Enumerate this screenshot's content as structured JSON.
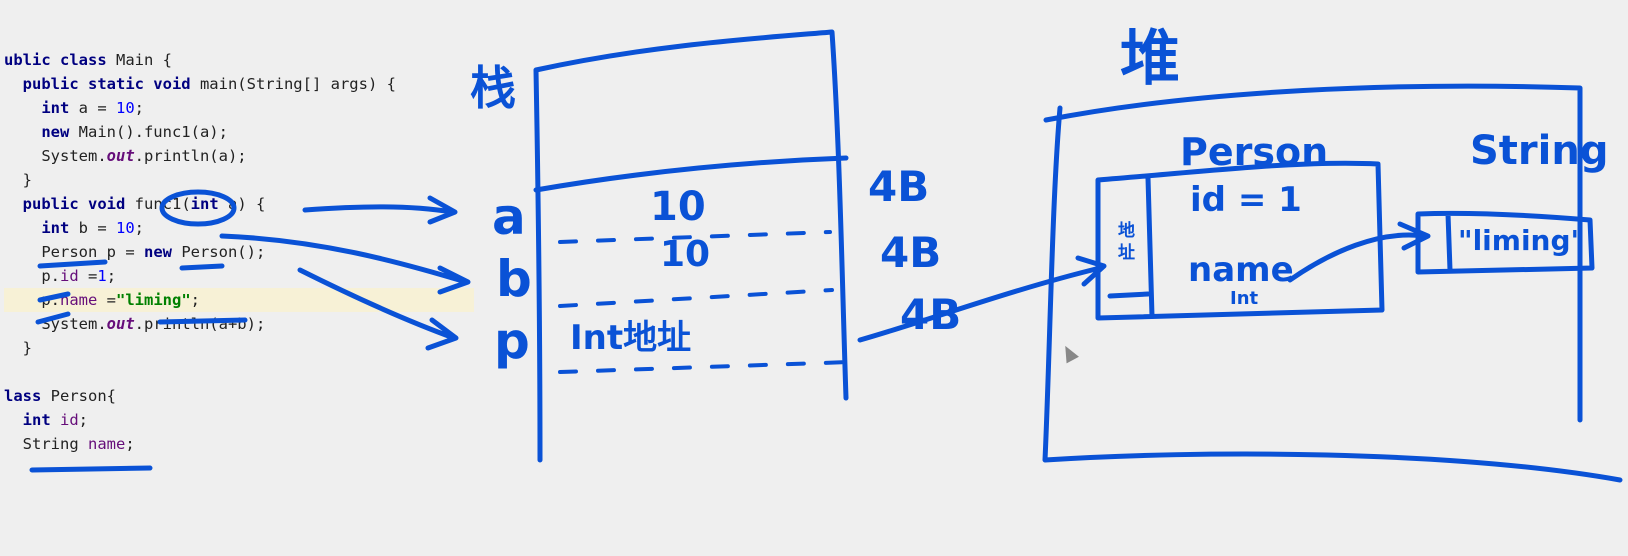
{
  "code": [
    [
      {
        "t": "ublic class ",
        "c": "kw"
      },
      {
        "t": "Main {",
        "c": ""
      }
    ],
    [
      {
        "t": "  public static void ",
        "c": "kw"
      },
      {
        "t": "main(String[] args) {",
        "c": ""
      }
    ],
    [
      {
        "t": "    int ",
        "c": "kw"
      },
      {
        "t": "a = ",
        "c": ""
      },
      {
        "t": "10",
        "c": "num"
      },
      {
        "t": ";",
        "c": ""
      }
    ],
    [
      {
        "t": "    new ",
        "c": "kw"
      },
      {
        "t": "Main().func1(a);",
        "c": ""
      }
    ],
    [
      {
        "t": "    System.",
        "c": ""
      },
      {
        "t": "out",
        "c": "static"
      },
      {
        "t": ".println(a);",
        "c": ""
      }
    ],
    [
      {
        "t": "  }",
        "c": ""
      }
    ],
    [
      {
        "t": "  public void ",
        "c": "kw"
      },
      {
        "t": "func1(",
        "c": ""
      },
      {
        "t": "int ",
        "c": "kw"
      },
      {
        "t": "a) {",
        "c": ""
      }
    ],
    [
      {
        "t": "    int ",
        "c": "kw"
      },
      {
        "t": "b = ",
        "c": ""
      },
      {
        "t": "10",
        "c": "num"
      },
      {
        "t": ";",
        "c": ""
      }
    ],
    [
      {
        "t": "    Person p = ",
        "c": ""
      },
      {
        "t": "new ",
        "c": "kw"
      },
      {
        "t": "Person();",
        "c": ""
      }
    ],
    [
      {
        "t": "    p.",
        "c": ""
      },
      {
        "t": "id ",
        "c": "field"
      },
      {
        "t": "=",
        "c": ""
      },
      {
        "t": "1",
        "c": "num"
      },
      {
        "t": ";",
        "c": ""
      }
    ],
    [
      {
        "t": "    p.",
        "c": ""
      },
      {
        "t": "name ",
        "c": "field"
      },
      {
        "t": "=",
        "c": ""
      },
      {
        "t": "\"liming\"",
        "c": "str"
      },
      {
        "t": ";",
        "c": ""
      }
    ],
    [
      {
        "t": "    System.",
        "c": ""
      },
      {
        "t": "out",
        "c": "static"
      },
      {
        "t": ".println(a+b);",
        "c": ""
      }
    ],
    [
      {
        "t": "  }",
        "c": ""
      }
    ],
    [
      {
        "t": "",
        "c": ""
      }
    ],
    [
      {
        "t": "lass ",
        "c": "kw"
      },
      {
        "t": "Person{",
        "c": ""
      }
    ],
    [
      {
        "t": "  int ",
        "c": "kw"
      },
      {
        "t": "id",
        "c": "field"
      },
      {
        "t": ";",
        "c": ""
      }
    ],
    [
      {
        "t": "  String ",
        "c": ""
      },
      {
        "t": "name",
        "c": "field"
      },
      {
        "t": ";",
        "c": ""
      }
    ]
  ],
  "highlight_line": 10,
  "stack": {
    "title": "栈",
    "slot_labels": [
      "a",
      "b",
      "p"
    ],
    "slot_values": [
      "10",
      "10",
      "Int地址"
    ],
    "slot_sizes": [
      "4B",
      "4B",
      "4B"
    ]
  },
  "heap": {
    "title": "堆",
    "object_title": "Person",
    "object_header": "地址",
    "field_id": "id = 1",
    "field_name": "name",
    "field_name_type": "Int",
    "string_label": "String",
    "string_value": "\"liming\""
  },
  "ink_color": "#0a52d6"
}
